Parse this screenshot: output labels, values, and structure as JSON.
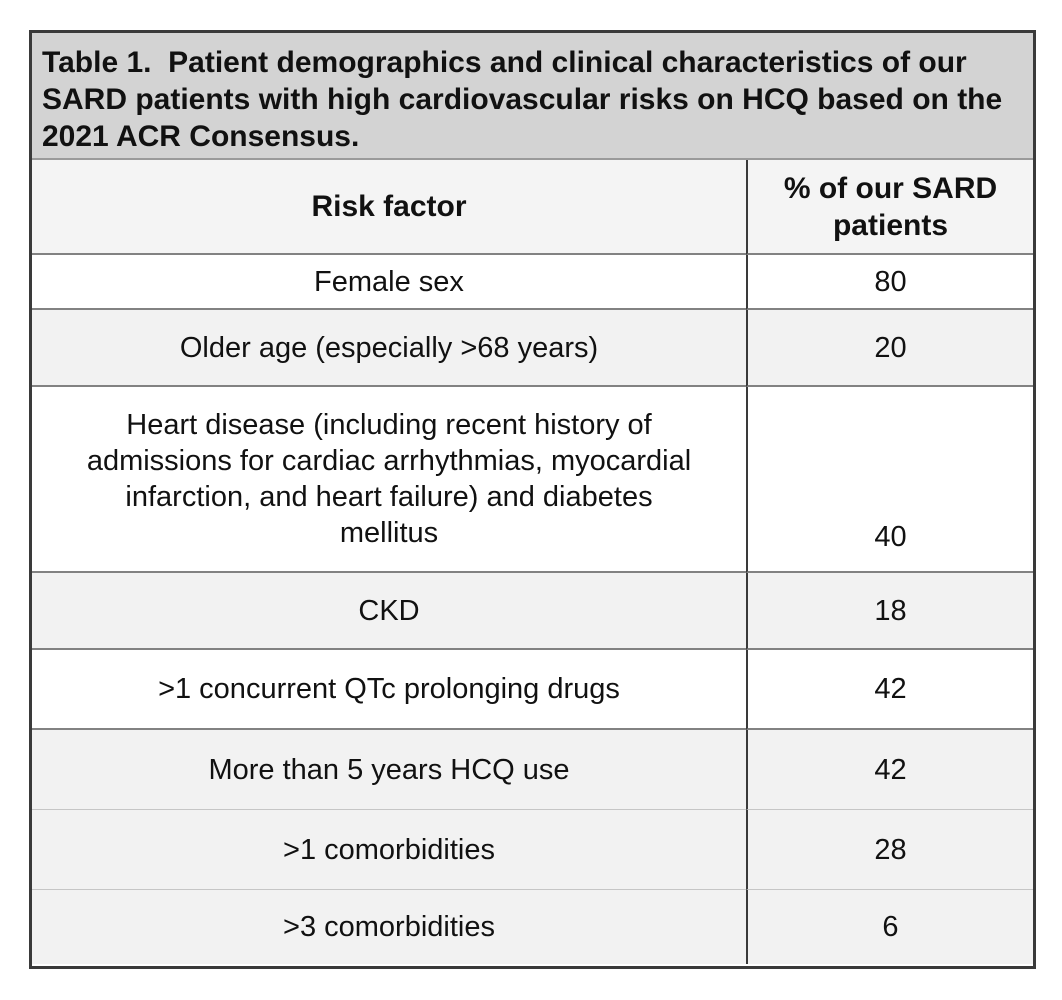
{
  "table": {
    "title_lines": [
      "Table 1.  Patient demographics and clinical characteristics of our",
      "SARD patients with high cardiovascular risks on HCQ based on the",
      "2021 ACR Consensus."
    ],
    "columns": {
      "risk_factor": "Risk factor",
      "percent": "% of our SARD patients"
    },
    "rows": [
      {
        "factor": "Female sex",
        "value": "80"
      },
      {
        "factor": "Older age (especially >68 years)",
        "value": "20"
      },
      {
        "factor": "Heart disease (including recent history of admissions for cardiac arrhythmias, myocardial infarction, and heart failure) and diabetes mellitus",
        "factor_lines": [
          "Heart disease (including recent history of",
          "admissions for cardiac arrhythmias, myocardial",
          "infarction, and heart failure) and diabetes",
          "mellitus"
        ],
        "value": "40"
      },
      {
        "factor": "CKD",
        "value": "18"
      },
      {
        "factor": ">1 concurrent QTc prolonging drugs",
        "value": "42"
      },
      {
        "factor": "More than 5 years HCQ use",
        "value": "42"
      },
      {
        "factor": ">1 comorbidities",
        "value": "28"
      },
      {
        "factor": ">3 comorbidities",
        "value": "6"
      }
    ]
  },
  "colors": {
    "title_background": "#d3d3d3",
    "header_background": "#f4f4f4",
    "shaded_row": "#f2f2f2",
    "outer_border": "#3a3a3a"
  },
  "chart_data": {
    "type": "table",
    "title": "Table 1. Patient demographics and clinical characteristics of our SARD patients with high cardiovascular risks on HCQ based on the 2021 ACR Consensus.",
    "columns": [
      "Risk factor",
      "% of our SARD patients"
    ],
    "rows": [
      [
        "Female sex",
        80
      ],
      [
        "Older age (especially >68 years)",
        20
      ],
      [
        "Heart disease (including recent history of admissions for cardiac arrhythmias, myocardial infarction, and heart failure) and diabetes mellitus",
        40
      ],
      [
        "CKD",
        18
      ],
      [
        ">1 concurrent QTc prolonging drugs",
        42
      ],
      [
        "More than 5 years HCQ use",
        42
      ],
      [
        ">1 comorbidities",
        28
      ],
      [
        ">3 comorbidities",
        6
      ]
    ]
  }
}
